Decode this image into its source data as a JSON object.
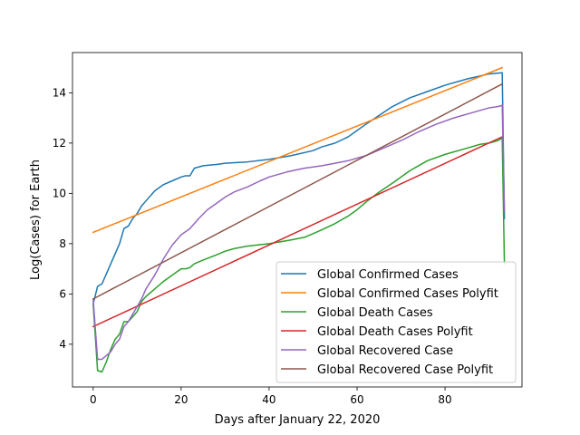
{
  "chart_data": {
    "type": "line",
    "title": "",
    "xlabel": "Days after January 22, 2020",
    "ylabel": "Log(Cases) for Earth",
    "xlim": [
      -4.7,
      97.5
    ],
    "ylim": [
      2.3,
      15.6
    ],
    "xticks": [
      0,
      20,
      40,
      60,
      80
    ],
    "yticks": [
      4,
      6,
      8,
      10,
      12,
      14
    ],
    "grid": false,
    "legend_position": "lower right",
    "series": [
      {
        "name": "Global Confirmed Cases",
        "color": "#1f77b4",
        "x": [
          0,
          1,
          2,
          3,
          4,
          5,
          6,
          7,
          8,
          9,
          10,
          11,
          12,
          14,
          16,
          18,
          20,
          21,
          22,
          23,
          25,
          28,
          30,
          35,
          40,
          45,
          50,
          52,
          55,
          58,
          60,
          62,
          65,
          68,
          72,
          76,
          80,
          85,
          90,
          93,
          93.5
        ],
        "y": [
          5.6,
          6.3,
          6.4,
          6.8,
          7.2,
          7.6,
          8.0,
          8.6,
          8.7,
          9.0,
          9.2,
          9.5,
          9.7,
          10.1,
          10.35,
          10.5,
          10.65,
          10.7,
          10.7,
          11.0,
          11.1,
          11.15,
          11.2,
          11.25,
          11.35,
          11.5,
          11.7,
          11.85,
          12.0,
          12.25,
          12.5,
          12.75,
          13.1,
          13.45,
          13.8,
          14.05,
          14.3,
          14.55,
          14.75,
          14.8,
          9.0
        ]
      },
      {
        "name": "Global Confirmed Cases Polyfit",
        "color": "#ff7f0e",
        "x": [
          0,
          93
        ],
        "y": [
          8.45,
          15.0
        ]
      },
      {
        "name": "Global Death Cases",
        "color": "#2ca02c",
        "x": [
          0,
          1,
          2,
          3,
          4,
          5,
          6,
          7,
          8,
          9,
          10,
          11,
          12,
          14,
          16,
          18,
          20,
          21,
          22,
          23,
          25,
          28,
          30,
          32,
          35,
          40,
          45,
          48,
          50,
          52,
          55,
          58,
          60,
          62,
          65,
          68,
          72,
          76,
          80,
          85,
          88,
          90,
          92,
          93,
          93.5
        ],
        "y": [
          5.6,
          2.95,
          2.9,
          3.3,
          3.8,
          4.2,
          4.4,
          4.9,
          4.9,
          5.1,
          5.3,
          5.7,
          5.9,
          6.2,
          6.5,
          6.75,
          7.0,
          7.0,
          7.05,
          7.2,
          7.35,
          7.55,
          7.7,
          7.8,
          7.9,
          8.0,
          8.15,
          8.25,
          8.4,
          8.55,
          8.8,
          9.1,
          9.35,
          9.65,
          10.05,
          10.4,
          10.9,
          11.3,
          11.55,
          11.8,
          11.95,
          12.0,
          12.1,
          12.2,
          7.2
        ]
      },
      {
        "name": "Global Death Cases Polyfit",
        "color": "#d62728",
        "x": [
          0,
          93
        ],
        "y": [
          4.7,
          12.25
        ]
      },
      {
        "name": "Global Recovered Case",
        "color": "#9467bd",
        "x": [
          0,
          1,
          2,
          3,
          4,
          5,
          6,
          7,
          8,
          9,
          10,
          11,
          12,
          14,
          16,
          18,
          20,
          22,
          24,
          26,
          28,
          30,
          32,
          35,
          38,
          40,
          44,
          48,
          52,
          55,
          58,
          62,
          66,
          70,
          74,
          78,
          82,
          86,
          90,
          92,
          93,
          93.5
        ],
        "y": [
          5.8,
          3.4,
          3.4,
          3.55,
          3.7,
          4.0,
          4.2,
          4.7,
          4.9,
          5.2,
          5.5,
          5.8,
          6.2,
          6.75,
          7.4,
          7.95,
          8.35,
          8.6,
          9.0,
          9.35,
          9.6,
          9.85,
          10.05,
          10.25,
          10.5,
          10.65,
          10.85,
          11.0,
          11.1,
          11.2,
          11.3,
          11.5,
          11.8,
          12.1,
          12.45,
          12.75,
          13.0,
          13.2,
          13.4,
          13.45,
          13.5,
          9.3
        ]
      },
      {
        "name": "Global Recovered Case Polyfit",
        "color": "#8c564b",
        "x": [
          0,
          93
        ],
        "y": [
          5.8,
          14.35
        ]
      }
    ]
  }
}
